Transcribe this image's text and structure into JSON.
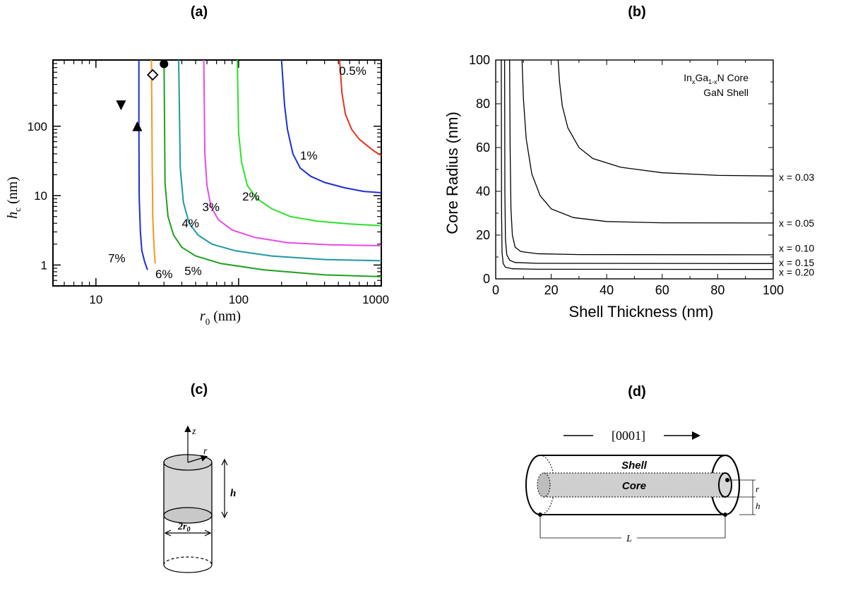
{
  "panels": {
    "a": {
      "label": "(a)"
    },
    "b": {
      "label": "(b)"
    },
    "c": {
      "label": "(c)"
    },
    "d": {
      "label": "(d)"
    }
  },
  "chart_data": [
    {
      "type": "line",
      "panel": "(a)",
      "xlabel": "r",
      "xlabel_sub": "0",
      "xlabel_unit": " (nm)",
      "ylabel": "h",
      "ylabel_sub": "c",
      "ylabel_unit": " (nm)",
      "xscale": "log",
      "yscale": "log",
      "xlim": [
        5,
        1000
      ],
      "ylim": [
        0.5,
        900
      ],
      "xticks": [
        {
          "v": 10,
          "label": "10"
        },
        {
          "v": 100,
          "label": "100"
        },
        {
          "v": 1000,
          "label": "1000"
        }
      ],
      "yticks": [
        {
          "v": 1,
          "label": "1"
        },
        {
          "v": 10,
          "label": "10"
        },
        {
          "v": 100,
          "label": "100"
        }
      ],
      "series": [
        {
          "name": "0.5%",
          "color": "#e8321e",
          "x": [
            510,
            530,
            560,
            620,
            700,
            800,
            900,
            1000
          ],
          "y": [
            900,
            300,
            150,
            90,
            65,
            52,
            43,
            38
          ]
        },
        {
          "name": "1%",
          "color": "#1e2ed6",
          "x": [
            200,
            210,
            220,
            240,
            270,
            320,
            400,
            550,
            750,
            1000
          ],
          "y": [
            900,
            200,
            90,
            40,
            25,
            19,
            15.5,
            13,
            11.5,
            11
          ]
        },
        {
          "name": "2%",
          "color": "#2de02d",
          "x": [
            98,
            100,
            105,
            115,
            135,
            170,
            230,
            350,
            600,
            1000
          ],
          "y": [
            900,
            80,
            30,
            14,
            9,
            6.5,
            5,
            4.3,
            3.9,
            3.7
          ]
        },
        {
          "name": "3%",
          "color": "#e64be6",
          "x": [
            57,
            58,
            60,
            64,
            72,
            90,
            130,
            220,
            450,
            1000
          ],
          "y": [
            900,
            40,
            14,
            7,
            4.5,
            3.2,
            2.5,
            2.1,
            1.95,
            1.9
          ]
        },
        {
          "name": "4%",
          "color": "#1c9aa0",
          "x": [
            38,
            39,
            41,
            45,
            52,
            65,
            95,
            170,
            400,
            1000
          ],
          "y": [
            900,
            25,
            8,
            4,
            2.7,
            2,
            1.6,
            1.35,
            1.2,
            1.15
          ]
        },
        {
          "name": "5%",
          "color": "#1ea01e",
          "x": [
            30,
            30.5,
            32,
            35,
            40,
            50,
            75,
            150,
            400,
            1000
          ],
          "y": [
            900,
            15,
            5,
            2.7,
            1.8,
            1.35,
            1.05,
            0.85,
            0.72,
            0.68
          ]
        },
        {
          "name": "6%",
          "color": "#f5981e",
          "x": [
            24.5,
            24.8,
            25,
            25.5,
            26
          ],
          "y": [
            900,
            30,
            5,
            2,
            1.05
          ]
        },
        {
          "name": "7%",
          "color": "#1e2ed6",
          "x": [
            20,
            20,
            20.1,
            20.5,
            21,
            22,
            23
          ],
          "y": [
            900,
            100,
            10,
            3,
            1.6,
            1.1,
            0.85
          ]
        }
      ],
      "curve_labels": [
        {
          "text": "0.5%",
          "x": 630,
          "y": 550
        },
        {
          "text": "1%",
          "x": 310,
          "y": 33
        },
        {
          "text": "2%",
          "x": 122,
          "y": 8.5
        },
        {
          "text": "3%",
          "x": 64,
          "y": 6
        },
        {
          "text": "4%",
          "x": 46,
          "y": 3.5
        },
        {
          "text": "5%",
          "x": 48,
          "y": 0.72
        },
        {
          "text": "6%",
          "x": 30,
          "y": 0.65
        },
        {
          "text": "7%",
          "x": 14,
          "y": 1.1
        }
      ],
      "markers": [
        {
          "shape": "triangle-down",
          "x": 15,
          "y": 200
        },
        {
          "shape": "triangle-up",
          "x": 19.5,
          "y": 100
        },
        {
          "shape": "diamond",
          "x": 25,
          "y": 550
        },
        {
          "shape": "circle",
          "x": 30,
          "y": 790
        }
      ]
    },
    {
      "type": "line",
      "panel": "(b)",
      "xlabel": "Shell Thickness (nm)",
      "ylabel": "Core Radius (nm)",
      "xlim": [
        0,
        100
      ],
      "ylim": [
        0,
        100
      ],
      "xticks": [
        0,
        20,
        40,
        60,
        80,
        100
      ],
      "yticks": [
        0,
        20,
        40,
        60,
        80,
        100
      ],
      "annotation_line1": {
        "a": "In",
        "sub1": "x",
        "b": "Ga",
        "sub2": "1-x",
        "c": "N Core"
      },
      "annotation_line2": "GaN Shell",
      "series": [
        {
          "name": "x = 0.03",
          "x": [
            22.5,
            23,
            24,
            26,
            30,
            35,
            45,
            60,
            80,
            100
          ],
          "y": [
            100,
            90,
            79,
            69,
            60,
            55,
            51,
            48.5,
            47.3,
            47
          ]
        },
        {
          "name": "x = 0.05",
          "x": [
            9.5,
            10,
            11,
            13,
            16,
            20,
            28,
            40,
            60,
            100
          ],
          "y": [
            100,
            82,
            64,
            48,
            38,
            32,
            28,
            26.2,
            25.6,
            25.5
          ]
        },
        {
          "name": "x = 0.10",
          "x": [
            5,
            5.2,
            5.5,
            6,
            7,
            9,
            15,
            30,
            100
          ],
          "y": [
            100,
            60,
            32,
            20,
            14.5,
            12.5,
            11.5,
            11.1,
            11
          ]
        },
        {
          "name": "x = 0.15",
          "x": [
            3.2,
            3.3,
            3.5,
            4,
            5,
            7,
            15,
            100
          ],
          "y": [
            100,
            40,
            18,
            11,
            8.5,
            7.5,
            7.1,
            7
          ]
        },
        {
          "name": "x = 0.20",
          "x": [
            2,
            2.1,
            2.3,
            2.7,
            3.5,
            6,
            15,
            100
          ],
          "y": [
            100,
            30,
            12,
            7,
            5.3,
            4.6,
            4.4,
            4.3
          ]
        }
      ],
      "series_label_y": [
        46.5,
        25.5,
        14,
        7.5,
        3
      ]
    }
  ],
  "diagram_c": {
    "z_label": "z",
    "r_label": "r",
    "h_label": "h",
    "diameter_text": "2r",
    "diameter_sub": "0"
  },
  "diagram_d": {
    "direction_label": "[0001]",
    "shell_label": "Shell",
    "core_label": "Core",
    "r_label": "r",
    "h_label": "h",
    "L_label": "L"
  }
}
